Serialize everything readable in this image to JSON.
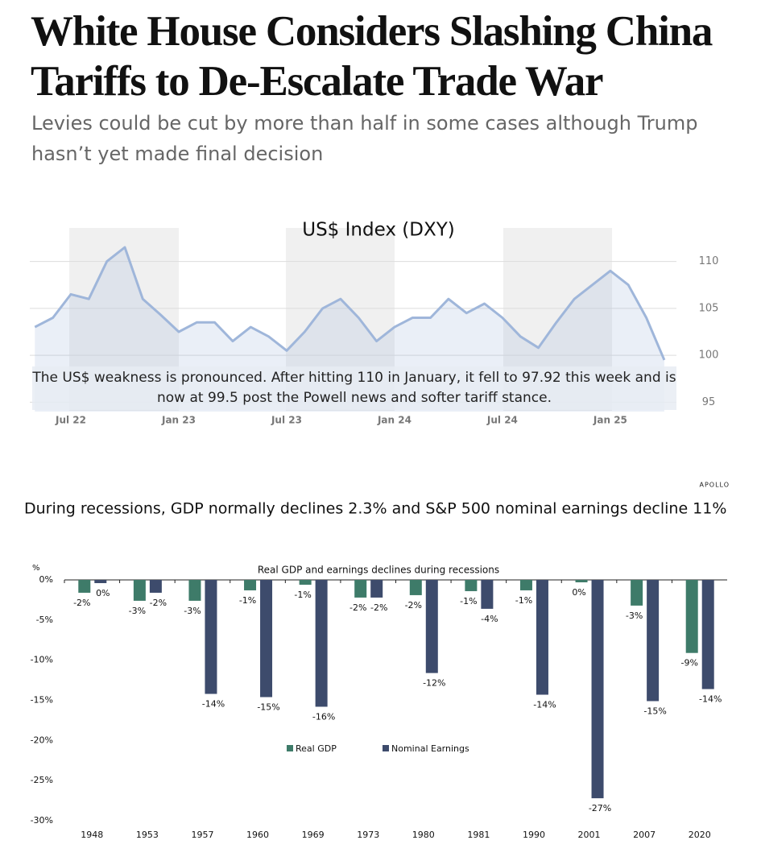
{
  "header": {
    "title": "White House Considers Slashing China Tariffs to De-Escalate Trade War",
    "subtitle": "Levies could be cut by more than half in some cases although Trump hasn’t yet made final decision"
  },
  "chart_data": [
    {
      "type": "line",
      "title": "US$ Index (DXY)",
      "annotation": "The US$ weakness is pronounced. After hitting 110 in January, it fell to 97.92 this week and is now at 99.5 post the Powell news and softer tariff stance.",
      "categories": [
        null,
        null,
        "Jul 22",
        null,
        null,
        null,
        null,
        null,
        "Jan 23",
        null,
        null,
        null,
        null,
        null,
        "Jul 23",
        null,
        null,
        null,
        null,
        null,
        "Jan 24",
        null,
        null,
        null,
        null,
        null,
        "Jul 24",
        null,
        null,
        null,
        null,
        null,
        "Jan 25",
        null,
        null,
        null
      ],
      "values": [
        103,
        104,
        106.5,
        106,
        110,
        111.5,
        106,
        104.3,
        102.5,
        103.5,
        103.5,
        101.5,
        103,
        102,
        100.5,
        102.5,
        105,
        106,
        104,
        101.5,
        103,
        104,
        104,
        106,
        104.5,
        105.5,
        104,
        102,
        100.8,
        103.5,
        106,
        107.5,
        109,
        107.5,
        104,
        99.5
      ],
      "color": "#9fb6da",
      "ylim": [
        94,
        114
      ],
      "yticks": [
        95,
        100,
        105,
        110
      ],
      "grid": true,
      "yaxis_position": "right"
    },
    {
      "type": "bar",
      "caption": "During recessions, GDP normally declines 2.3% and S&P 500 nominal earnings decline 11%",
      "source": "APOLLO",
      "title": "Real GDP and earnings declines during recessions",
      "y_label": "%",
      "categories": [
        "1948",
        "1953",
        "1957",
        "1960",
        "1969",
        "1973",
        "1980",
        "1981",
        "1990",
        "2001",
        "2007",
        "2020"
      ],
      "series": [
        {
          "name": "Real GDP",
          "color": "#3e7b69",
          "values": [
            -1.6,
            -2.6,
            -2.6,
            -1.3,
            -0.6,
            -2.2,
            -1.9,
            -1.4,
            -1.3,
            -0.3,
            -3.2,
            -9.1
          ],
          "value_labels": [
            "-2%",
            "-3%",
            "-3%",
            "-1%",
            "-1%",
            "-2%",
            "-2%",
            "-1%",
            "-1%",
            "0%",
            "-3%",
            "-9%"
          ]
        },
        {
          "name": "Nominal Earnings",
          "color": "#3d4b6c",
          "values": [
            -0.4,
            -1.6,
            -14.2,
            -14.6,
            -15.8,
            -2.2,
            -11.6,
            -3.6,
            -14.3,
            -27.2,
            -15.1,
            -13.6
          ],
          "value_labels": [
            "0%",
            "-2%",
            "-14%",
            "-15%",
            "-16%",
            "-2%",
            "-12%",
            "-4%",
            "-14%",
            "-27%",
            "-15%",
            "-14%"
          ]
        }
      ],
      "ylim": [
        -30,
        0
      ],
      "yticks": [
        {
          "value": 0,
          "label": "0%"
        },
        {
          "value": -5,
          "label": "-5%"
        },
        {
          "value": -10,
          "label": "-10%"
        },
        {
          "value": -15,
          "label": "-15%"
        },
        {
          "value": -20,
          "label": "-20%"
        },
        {
          "value": -25,
          "label": "-25%"
        },
        {
          "value": -30,
          "label": "-30%"
        }
      ],
      "legend": "center"
    }
  ]
}
